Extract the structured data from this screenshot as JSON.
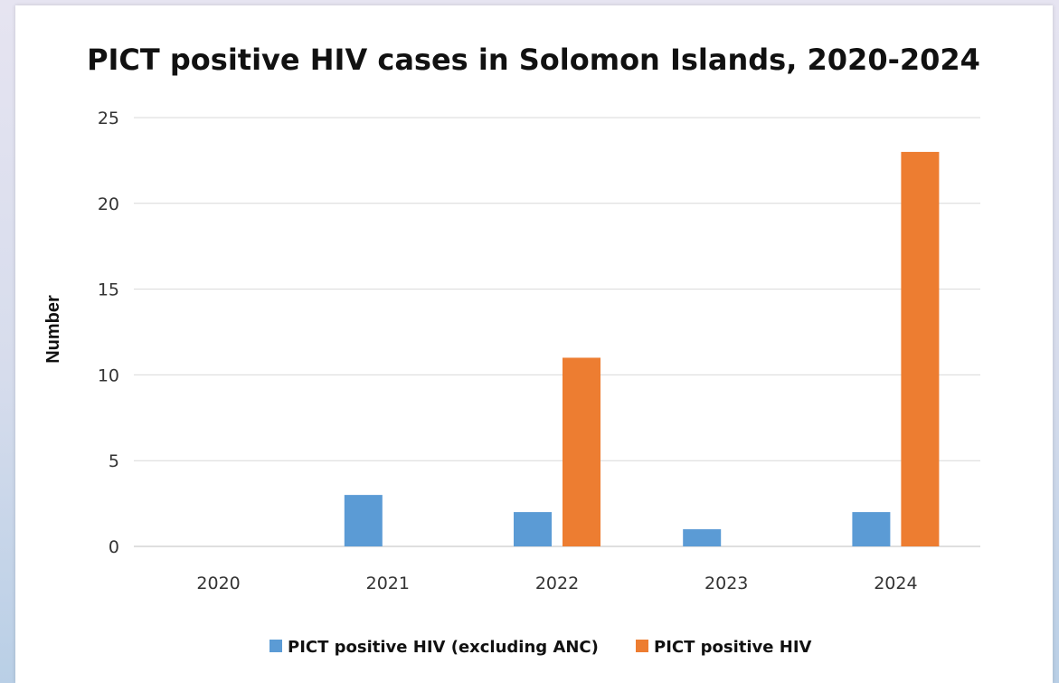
{
  "chart_data": {
    "type": "bar",
    "title": "PICT positive HIV cases in Solomon Islands, 2020-2024",
    "xlabel": "",
    "ylabel": "Number",
    "categories": [
      "2020",
      "2021",
      "2022",
      "2023",
      "2024"
    ],
    "series": [
      {
        "name": "PICT positive HIV (excluding ANC)",
        "values": [
          0,
          3,
          2,
          1,
          2
        ],
        "color": "#5b9bd5"
      },
      {
        "name": "PICT positive HIV",
        "values": [
          0,
          0,
          11,
          0,
          23
        ],
        "color": "#ed7d31"
      }
    ],
    "ylim": [
      0,
      25
    ],
    "yticks": [
      "0",
      "5",
      "10",
      "15",
      "20",
      "25"
    ],
    "grid": true,
    "legend_position": "bottom"
  }
}
